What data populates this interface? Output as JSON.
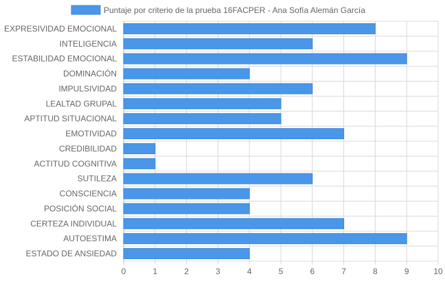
{
  "chart_data": {
    "type": "bar",
    "orientation": "horizontal",
    "legend": {
      "position": "top",
      "label": "Puntaje por criterio de la prueba 16FACPER - Ana Sofía Alemán García"
    },
    "categories": [
      "EXPRESIVIDAD EMOCIONAL",
      "INTELIGENCIA",
      "ESTABILIDAD EMOCIONAL",
      "DOMINACIÓN",
      "IMPULSIVIDAD",
      "LEALTAD GRUPAL",
      "APTITUD SITUACIONAL",
      "EMOTIVIDAD",
      "CREDIBILIDAD",
      "ACTITUD COGNITIVA",
      "SUTILEZA",
      "CONSCIENCIA",
      "POSICIÓN SOCIAL",
      "CERTEZA INDIVIDUAL",
      "AUTOESTIMA",
      "ESTADO DE ANSIEDAD"
    ],
    "series": [
      {
        "name": "Puntaje por criterio de la prueba 16FACPER - Ana Sofía Alemán García",
        "values": [
          8,
          6,
          9,
          4,
          6,
          5,
          5,
          7,
          1,
          1,
          6,
          4,
          4,
          7,
          9,
          4
        ]
      }
    ],
    "xlim": [
      0,
      10
    ],
    "x_ticks": [
      "0",
      "1",
      "2",
      "3",
      "4",
      "5",
      "6",
      "7",
      "8",
      "9",
      "10"
    ],
    "grid": true,
    "colors": {
      "bar_fill": "#4a97ea",
      "bar_stroke": "#3a86d9",
      "grid": "#d9d9d9",
      "axis": "#bbbbbb",
      "text": "#666666"
    }
  }
}
